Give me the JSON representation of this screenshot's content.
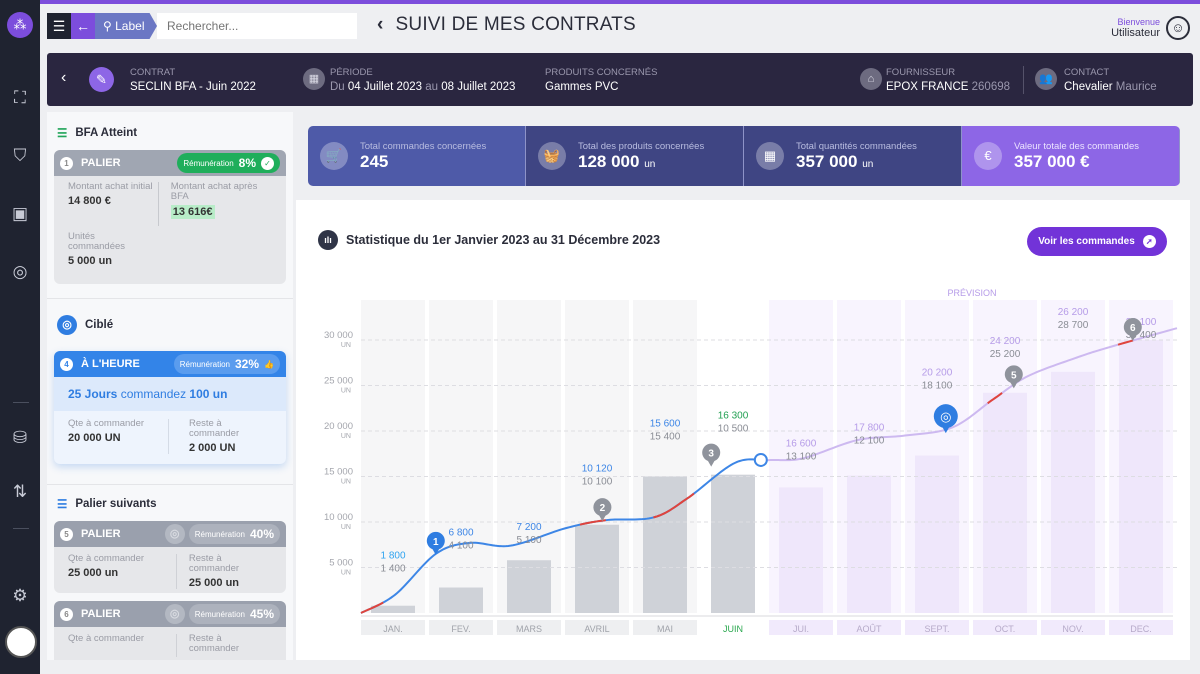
{
  "header": {
    "search_label": "Label",
    "search_placeholder": "Rechercher...",
    "title": "SUIVI DE MES CONTRATS",
    "welcome": "Bienvenue",
    "user": "Utilisateur"
  },
  "contract": {
    "contrat_label": "CONTRAT",
    "contrat_value": "SECLIN  BFA - Juin 2022",
    "periode_label": "PÉRIODE",
    "periode_du": "Du",
    "periode_start": "04 Juillet 2023",
    "periode_au": "au",
    "periode_end": "08 Juillet 2023",
    "produits_label": "PRODUITS CONCERNÉS",
    "produits_value": "Gammes PVC",
    "fournisseur_label": "FOURNISSEUR",
    "fournisseur_name": "EPOX FRANCE",
    "fournisseur_code": "260698",
    "contact_label": "CONTACT",
    "contact_last": "Chevalier",
    "contact_first": "Maurice"
  },
  "left": {
    "atteint": {
      "title": "BFA Atteint",
      "num": "1",
      "name": "PALIER",
      "rem_label": "Rémunération",
      "rem": "8%",
      "k1": "Montant achat initial",
      "v1": "14 800 €",
      "k2": "Montant achat après BFA",
      "v2": "13 616€",
      "k3": "Unités commandées",
      "v3": "5 000 un"
    },
    "cible": {
      "title": "Ciblé",
      "num": "4",
      "name": "À L'HEURE",
      "rem_label": "Rémunération",
      "rem": "32%",
      "jours": "25 Jours",
      "commandez": "commandez",
      "qty": "100 un",
      "k1": "Qte à commander",
      "v1": "20 000 UN",
      "k2": "Reste à commander",
      "v2": "2 000 UN"
    },
    "suivants": {
      "title": "Palier suivants",
      "items": [
        {
          "num": "5",
          "name": "PALIER",
          "rem_label": "Rémunération",
          "rem": "40%",
          "k1": "Qte à commander",
          "v1": "25 000 un",
          "k2": "Reste à commander",
          "v2": "25 000 un"
        },
        {
          "num": "6",
          "name": "PALIER",
          "rem_label": "Rémunération",
          "rem": "45%",
          "k1": "Qte à commander",
          "v1": "",
          "k2": "Reste à commander",
          "v2": ""
        }
      ]
    }
  },
  "kpis": [
    {
      "label": "Total commandes concernées",
      "value": "245",
      "unit": "",
      "color": "#4e5aa8"
    },
    {
      "label": "Total  des produits concernées",
      "value": "128 000",
      "unit": "un",
      "color": "#3f4583"
    },
    {
      "label": "Total quantités commandées",
      "value": "357  000",
      "unit": "un",
      "color": "#3f4583"
    },
    {
      "label": "Valeur totale des commandes",
      "value": "357 000 €",
      "unit": "",
      "color": "#8d66e6"
    }
  ],
  "stats": {
    "title": "Statistique du 1er Janvier 2023 au 31 Décembre 2023",
    "button": "Voir les commandes"
  },
  "chart_data": {
    "type": "bar+line",
    "forecast_label": "PRÉVISION",
    "categories": [
      "JAN.",
      "FEV.",
      "MARS",
      "AVRIL",
      "MAI",
      "JUIN",
      "JUI.",
      "AOÛT",
      "SEPT.",
      "OCT.",
      "NOV.",
      "DEC."
    ],
    "current_month_index": 5,
    "forecast_from_index": 6,
    "y_ticks": [
      5000,
      10000,
      15000,
      20000,
      25000,
      30000
    ],
    "y_tick_labels": [
      "5 000",
      "10 000",
      "15 000",
      "20 000",
      "25 000",
      "30 000"
    ],
    "y_unit": "UN",
    "ylim": [
      0,
      33000
    ],
    "bars": [
      800,
      2800,
      5800,
      9700,
      15000,
      15200,
      13800,
      15100,
      17300,
      24200,
      26500,
      30000
    ],
    "top_labels": [
      "1 800",
      "6 800",
      "7 200",
      "10 120",
      "15 600",
      "16 300",
      "16 600",
      "17 800",
      "20 200",
      "24 200",
      "26 200",
      "30 100"
    ],
    "bottom_labels": [
      "1 400",
      "4 100",
      "5 100",
      "10 100",
      "15 400",
      "10 500",
      "13 100",
      "12 100",
      "18 100",
      "25 200",
      "28 700",
      "30 400"
    ],
    "line_x": [
      0,
      0.5,
      1.1,
      1.6,
      2.2,
      3,
      3.6,
      4.3,
      4.8,
      5.5,
      6,
      6.5,
      7.3,
      8,
      8.7,
      9.3,
      9.8,
      10.5,
      11,
      12
    ],
    "line_y": [
      0,
      2000,
      6500,
      7700,
      7400,
      9300,
      10200,
      10500,
      12600,
      16500,
      16800,
      17000,
      19000,
      19500,
      20400,
      23500,
      26000,
      28000,
      29200,
      31300
    ],
    "red_ranges": [
      [
        0,
        0.35
      ],
      [
        3.2,
        3.6
      ],
      [
        4.3,
        4.9
      ],
      [
        9.2,
        9.45
      ],
      [
        11.1,
        11.4
      ]
    ],
    "markers": [
      {
        "label": "1",
        "x": 1.1,
        "y": 6500,
        "kind": "blue"
      },
      {
        "label": "2",
        "x": 3.55,
        "y": 10200,
        "kind": "gray"
      },
      {
        "label": "3",
        "x": 5.15,
        "y": 16200,
        "kind": "gray"
      },
      {
        "label": "",
        "x": 8.6,
        "y": 20200,
        "kind": "target"
      },
      {
        "label": "5",
        "x": 9.6,
        "y": 24800,
        "kind": "gray"
      },
      {
        "label": "6",
        "x": 11.35,
        "y": 30000,
        "kind": "gray"
      }
    ]
  }
}
